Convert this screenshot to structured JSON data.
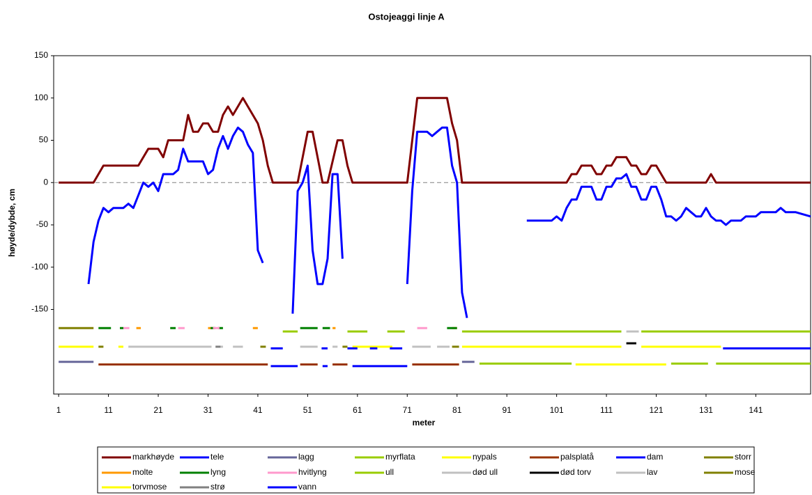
{
  "chart_data": {
    "type": "line",
    "title": "Ostojeaggi linje A",
    "x_label": "meter",
    "y_label": "høyde/dybde, cm",
    "xlim": [
      0,
      152
    ],
    "xticks": [
      1,
      11,
      21,
      31,
      41,
      51,
      61,
      71,
      81,
      91,
      101,
      111,
      121,
      131,
      141
    ],
    "ylim": [
      -250,
      150
    ],
    "yticks": [
      150,
      100,
      50,
      0,
      -50,
      -100,
      -150
    ],
    "grid": false,
    "zero_line": true,
    "legend": "bottom",
    "series": [
      {
        "name": "markhøyde",
        "color": "#800000",
        "x": [
          1,
          8,
          10,
          17,
          19,
          21,
          22,
          23,
          26,
          27,
          28,
          29,
          30,
          31,
          32,
          33,
          34,
          35,
          36,
          37,
          38,
          39,
          40,
          41,
          42,
          43,
          44,
          49,
          51,
          52,
          54,
          55,
          57,
          58,
          59,
          60,
          71,
          73,
          79,
          80,
          81,
          82,
          103,
          104,
          105,
          106,
          108,
          109,
          110,
          111,
          112,
          113,
          115,
          116,
          117,
          118,
          119,
          120,
          121,
          123,
          131,
          132,
          133,
          152
        ],
        "values": [
          0,
          0,
          20,
          20,
          40,
          40,
          30,
          50,
          50,
          80,
          60,
          60,
          70,
          70,
          60,
          60,
          80,
          90,
          80,
          90,
          100,
          90,
          80,
          70,
          50,
          20,
          0,
          0,
          60,
          60,
          0,
          0,
          50,
          50,
          20,
          0,
          0,
          100,
          100,
          70,
          50,
          0,
          0,
          10,
          10,
          20,
          20,
          10,
          10,
          20,
          20,
          30,
          30,
          20,
          20,
          10,
          10,
          20,
          20,
          0,
          0,
          10,
          0,
          0
        ]
      },
      {
        "name": "tele",
        "color": "#0000ff",
        "x": [
          7,
          8,
          9,
          10,
          11,
          12,
          14,
          15,
          16,
          17,
          18,
          19,
          20,
          21,
          22,
          24,
          25,
          26,
          27,
          30,
          31,
          32,
          33,
          34,
          35,
          36,
          37,
          38,
          39,
          40,
          41,
          42,
          null,
          48,
          49,
          50,
          51,
          52,
          53,
          54,
          55,
          56,
          57,
          58,
          null,
          71,
          72,
          73,
          75,
          76,
          77,
          78,
          79,
          80,
          81,
          82,
          83,
          null,
          95,
          100,
          101,
          102,
          103,
          104,
          105,
          106,
          108,
          109,
          110,
          111,
          112,
          113,
          114,
          115,
          116,
          117,
          118,
          119,
          120,
          121,
          122,
          123,
          124,
          125,
          126,
          127,
          128,
          129,
          130,
          131,
          132,
          133,
          134,
          135,
          136,
          138,
          139,
          141,
          142,
          145,
          146,
          147,
          149,
          152
        ],
        "values": [
          -120,
          -70,
          -45,
          -30,
          -35,
          -30,
          -30,
          -25,
          -30,
          -15,
          0,
          -5,
          0,
          -10,
          10,
          10,
          15,
          40,
          25,
          25,
          10,
          15,
          40,
          55,
          40,
          55,
          65,
          60,
          45,
          35,
          -80,
          -95,
          null,
          -155,
          -10,
          0,
          20,
          -80,
          -120,
          -120,
          -90,
          10,
          10,
          -90,
          null,
          -120,
          -10,
          60,
          60,
          55,
          60,
          65,
          65,
          20,
          0,
          -130,
          -160,
          null,
          -45,
          -45,
          -40,
          -45,
          -30,
          -20,
          -20,
          -5,
          -5,
          -20,
          -20,
          -5,
          -5,
          5,
          5,
          10,
          -5,
          -5,
          -20,
          -20,
          -5,
          -5,
          -20,
          -40,
          -40,
          -45,
          -40,
          -30,
          -35,
          -40,
          -40,
          -30,
          -40,
          -45,
          -45,
          -50,
          -45,
          -45,
          -40,
          -40,
          -35,
          -35,
          -30,
          -35,
          -35,
          -40
        ]
      },
      {
        "name": "lagg",
        "color": "#666699",
        "x": [
          1,
          8,
          null,
          82,
          84.5
        ],
        "values": [
          -212,
          -212,
          null,
          -212,
          -212
        ]
      },
      {
        "name": "myrflata",
        "color": "#99cc00",
        "x": [
          46,
          49,
          null,
          59,
          63,
          null,
          67,
          70.5,
          null,
          82,
          114,
          null,
          118,
          152
        ],
        "values": [
          -176,
          -176,
          null,
          -176,
          -176,
          null,
          -176,
          -176,
          null,
          -176,
          -176,
          null,
          -176,
          -176
        ]
      },
      {
        "name": "nypals",
        "color": "#ffff00",
        "x": [
          1,
          8,
          null,
          13,
          14,
          null,
          60,
          68,
          null,
          82,
          114,
          null,
          118,
          134
        ],
        "values": [
          -194,
          -194,
          null,
          -194,
          -194,
          null,
          -194,
          -194,
          null,
          -194,
          -194,
          null,
          -194,
          -194
        ]
      },
      {
        "name": "palsplatå",
        "color": "#993300",
        "x": [
          9,
          43,
          null,
          49.5,
          53,
          null,
          56,
          59,
          null,
          72,
          81.4
        ],
        "values": [
          -215,
          -215,
          null,
          -215,
          -215,
          null,
          -215,
          -215,
          null,
          -215,
          -215
        ]
      },
      {
        "name": "dam",
        "color": "#0000ff",
        "x": [
          43.6,
          49,
          null,
          54,
          55,
          null,
          60,
          71
        ],
        "values": [
          -217,
          -217,
          null,
          -217,
          -217,
          null,
          -217,
          -217
        ]
      },
      {
        "name": "storr",
        "color": "#808000",
        "x": [
          1,
          8
        ],
        "values": [
          -172,
          -172
        ]
      },
      {
        "name": "molte",
        "color": "#ff9900",
        "x": [
          16.6,
          17.5,
          null,
          31,
          32,
          null,
          40,
          41,
          null,
          56,
          56.6,
          null,
          80,
          81
        ],
        "values": [
          -172,
          -172,
          null,
          -172,
          -172,
          null,
          -172,
          -172,
          null,
          -172,
          -172,
          null,
          -172,
          -172
        ]
      },
      {
        "name": "lyng",
        "color": "#008000",
        "x": [
          9,
          11.5,
          null,
          13.3,
          14,
          null,
          23.4,
          24.5,
          null,
          31.5,
          32.5,
          null,
          33,
          34,
          null,
          49.5,
          53,
          null,
          54,
          55.5,
          null,
          79,
          81
        ],
        "values": [
          -172,
          -172,
          null,
          -172,
          -172,
          null,
          -172,
          -172,
          null,
          -172,
          -172,
          null,
          -172,
          -172,
          null,
          -172,
          -172,
          null,
          -172,
          -172,
          null,
          -172,
          -172
        ]
      },
      {
        "name": "hvitlyng",
        "color": "#ff99cc",
        "x": [
          14,
          15.2,
          null,
          25,
          26.3,
          null,
          32,
          33.3,
          null,
          73,
          75
        ],
        "values": [
          -172,
          -172,
          null,
          -172,
          -172,
          null,
          -172,
          -172,
          null,
          -172,
          -172
        ]
      },
      {
        "name": "ull",
        "color": "#99cc00",
        "x": [
          85.5,
          104,
          null,
          124,
          131.4,
          null,
          133,
          152
        ],
        "values": [
          -214,
          -214,
          null,
          -214,
          -214,
          null,
          -214,
          -214
        ]
      },
      {
        "name": "død ull",
        "color": "#c0c0c0",
        "x": [
          15,
          31.7,
          null,
          33,
          34,
          null,
          36,
          38,
          null,
          49.5,
          53,
          null,
          56,
          57,
          null,
          72,
          75.7,
          null,
          77,
          79.5
        ],
        "values": [
          -194,
          -194,
          null,
          -194,
          -194,
          null,
          -194,
          -194,
          null,
          -194,
          -194,
          null,
          -194,
          -194,
          null,
          -194,
          -194,
          null,
          -194,
          -194
        ]
      },
      {
        "name": "død torv",
        "color": "#000000",
        "x": [
          115,
          117
        ],
        "values": [
          -190,
          -190
        ]
      },
      {
        "name": "lav",
        "color": "#c0c0c0",
        "x": [
          115,
          117.5
        ],
        "values": [
          -176,
          -176
        ]
      },
      {
        "name": "mose",
        "color": "#808000",
        "x": [
          9,
          10,
          null,
          41.5,
          42.6,
          null,
          58,
          59,
          null,
          80,
          81.4
        ],
        "values": [
          -194,
          -194,
          null,
          -194,
          -194,
          null,
          -194,
          -194,
          null,
          -194,
          -194
        ]
      },
      {
        "name": "torvmose",
        "color": "#ffff00",
        "x": [
          104.8,
          123
        ],
        "values": [
          -215,
          -215
        ]
      },
      {
        "name": "strø",
        "color": "#808080",
        "x": [
          32.5,
          33.5
        ],
        "values": [
          -194,
          -194
        ]
      },
      {
        "name": "vann",
        "color": "#0000ff",
        "x": [
          43.6,
          46,
          null,
          53.8,
          55,
          null,
          59,
          61,
          null,
          63.5,
          65,
          null,
          67.5,
          70,
          null,
          134.4,
          152
        ],
        "values": [
          -196,
          -196,
          null,
          -196,
          -196,
          null,
          -196,
          -196,
          null,
          -196,
          -196,
          null,
          -196,
          -196,
          null,
          -196,
          -196
        ]
      }
    ]
  }
}
